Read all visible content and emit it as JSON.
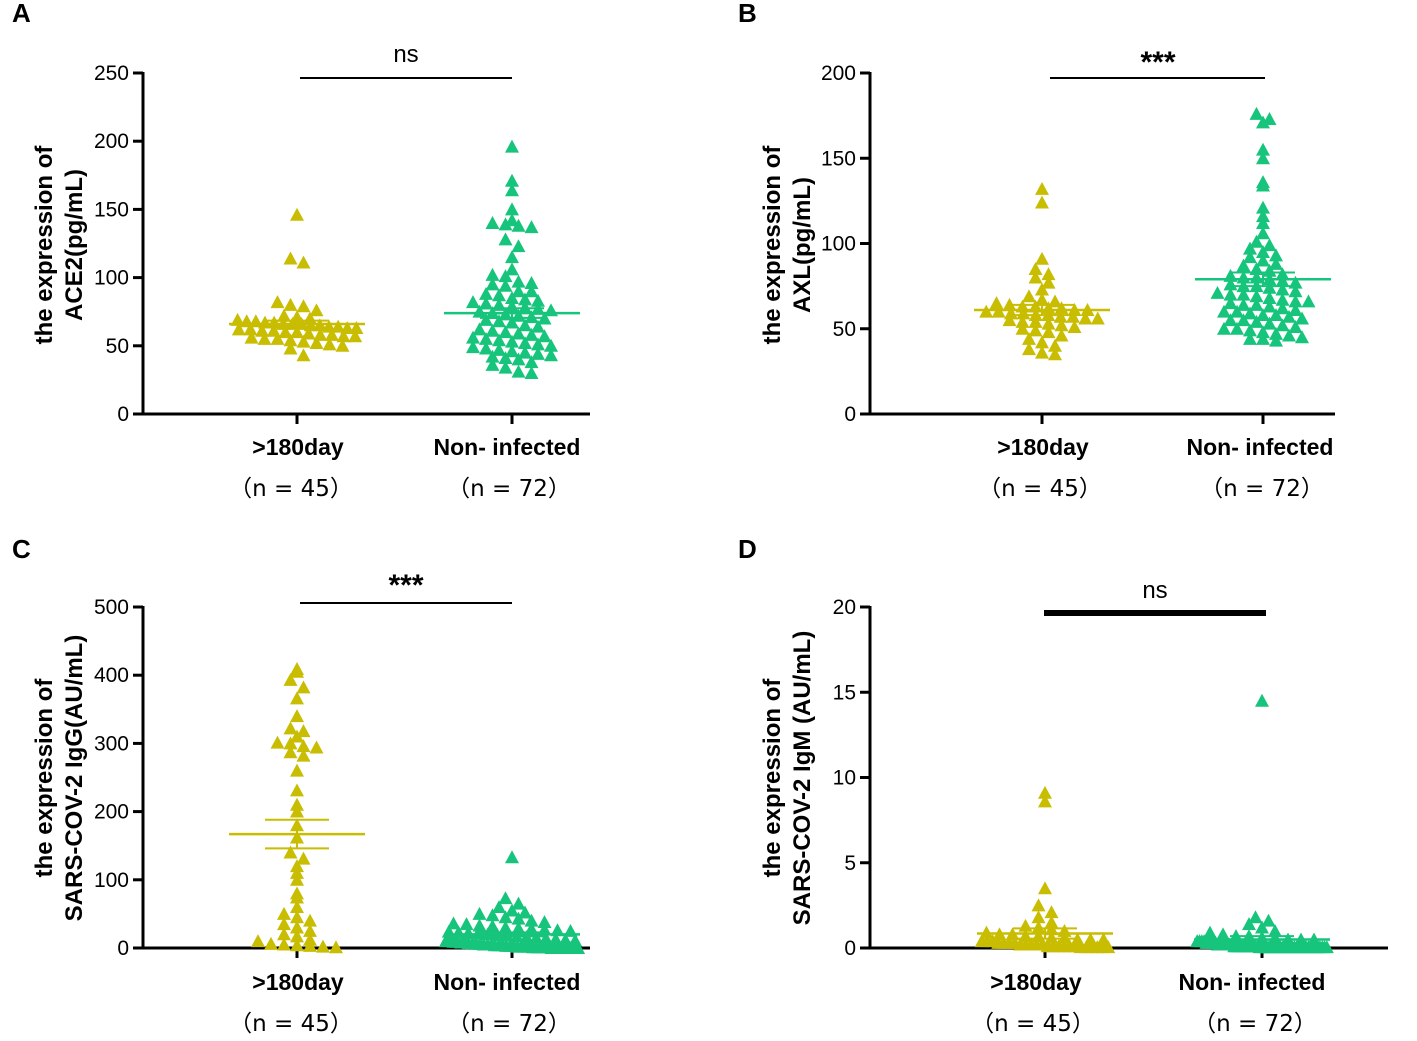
{
  "colors": {
    "group1": "#c8bd00",
    "group2": "#17c47c",
    "axis": "#000000"
  },
  "chart_data": [
    {
      "panel": "A",
      "type": "scatter",
      "ylabel": [
        "the expression of",
        "ACE2(pg/mL)"
      ],
      "ylim": [
        0,
        250
      ],
      "yticks": [
        "0",
        "50",
        "100",
        "150",
        "200",
        "250"
      ],
      "yticks_values": [
        0,
        50,
        100,
        150,
        200,
        250
      ],
      "categories": [
        ">180day",
        "Non- infected"
      ],
      "ns": [
        "（n = 45）",
        "（n = 72）"
      ],
      "significance": "ns",
      "groups": [
        {
          "name": ">180day",
          "mean": 66,
          "sem": 2.5,
          "values": [
            146,
            114,
            111,
            82,
            80,
            79,
            76,
            72,
            71,
            70,
            69,
            68,
            68,
            67,
            67,
            66,
            66,
            66,
            65,
            65,
            64,
            64,
            63,
            63,
            62,
            62,
            61,
            61,
            60,
            60,
            59,
            58,
            58,
            57,
            57,
            56,
            55,
            55,
            54,
            53,
            52,
            51,
            50,
            48,
            43
          ]
        },
        {
          "name": "Non- infected",
          "mean": 74,
          "sem": 3.5,
          "values": [
            196,
            171,
            164,
            150,
            142,
            140,
            139,
            138,
            137,
            128,
            123,
            115,
            106,
            102,
            101,
            97,
            96,
            95,
            94,
            90,
            90,
            88,
            87,
            85,
            84,
            83,
            82,
            81,
            80,
            79,
            78,
            77,
            76,
            75,
            74,
            73,
            72,
            71,
            70,
            69,
            68,
            67,
            65,
            64,
            62,
            61,
            60,
            59,
            58,
            57,
            56,
            55,
            54,
            53,
            52,
            51,
            50,
            49,
            48,
            47,
            46,
            45,
            44,
            43,
            42,
            41,
            40,
            38,
            36,
            34,
            31,
            30
          ]
        }
      ]
    },
    {
      "panel": "B",
      "type": "scatter",
      "ylabel": [
        "the expression of",
        "AXL(pg/mL)"
      ],
      "ylim": [
        0,
        200
      ],
      "yticks": [
        "0",
        "50",
        "100",
        "150",
        "200"
      ],
      "yticks_values": [
        0,
        50,
        100,
        150,
        200
      ],
      "categories": [
        ">180day",
        "Non- infected"
      ],
      "ns": [
        "（n = 45）",
        "（n = 72）"
      ],
      "significance": "***",
      "groups": [
        {
          "name": ">180day",
          "mean": 61,
          "sem": 3,
          "values": [
            132,
            124,
            91,
            85,
            82,
            80,
            77,
            73,
            69,
            67,
            66,
            65,
            64,
            63,
            63,
            62,
            62,
            61,
            61,
            60,
            60,
            59,
            59,
            58,
            58,
            57,
            57,
            56,
            56,
            55,
            54,
            54,
            53,
            52,
            51,
            50,
            49,
            48,
            46,
            44,
            42,
            40,
            38,
            36,
            35
          ]
        },
        {
          "name": "Non- infected",
          "mean": 79,
          "sem": 4,
          "values": [
            176,
            173,
            171,
            155,
            150,
            136,
            134,
            121,
            116,
            112,
            106,
            101,
            99,
            97,
            95,
            93,
            92,
            90,
            88,
            87,
            85,
            84,
            82,
            81,
            80,
            79,
            78,
            77,
            76,
            75,
            74,
            73,
            72,
            71,
            70,
            69,
            68,
            67,
            66,
            65,
            64,
            63,
            62,
            61,
            60,
            60,
            59,
            58,
            57,
            56,
            55,
            55,
            54,
            53,
            52,
            51,
            50,
            50,
            49,
            48,
            47,
            46,
            45,
            44,
            44,
            43,
            58,
            64,
            66,
            70,
            75,
            80
          ]
        }
      ]
    },
    {
      "panel": "C",
      "type": "scatter",
      "ylabel": [
        "the expression of",
        "SARS-COV-2 IgG(AU/mL)"
      ],
      "ylim": [
        0,
        500
      ],
      "yticks": [
        "0",
        "100",
        "200",
        "300",
        "400",
        "500"
      ],
      "yticks_values": [
        0,
        100,
        200,
        300,
        400,
        500
      ],
      "categories": [
        ">180day",
        "Non- infected"
      ],
      "ns": [
        "（n = 45）",
        "（n = 72）"
      ],
      "significance": "***",
      "groups": [
        {
          "name": ">180day",
          "mean": 167,
          "sem": 21,
          "values": [
            409,
            405,
            393,
            382,
            366,
            340,
            322,
            318,
            310,
            301,
            300,
            296,
            294,
            287,
            282,
            260,
            231,
            210,
            200,
            180,
            162,
            140,
            131,
            120,
            110,
            100,
            80,
            74,
            60,
            50,
            45,
            40,
            35,
            30,
            25,
            20,
            17,
            12,
            10,
            6,
            5,
            4,
            3,
            2,
            1
          ]
        },
        {
          "name": "Non- infected",
          "mean": 20,
          "sem": 3,
          "values": [
            133,
            73,
            65,
            60,
            55,
            52,
            50,
            48,
            45,
            43,
            40,
            38,
            36,
            35,
            33,
            32,
            30,
            29,
            28,
            27,
            26,
            25,
            24,
            23,
            22,
            21,
            20,
            19,
            18,
            17,
            16,
            15,
            14,
            13,
            12,
            11,
            10,
            10,
            9,
            9,
            8,
            8,
            7,
            7,
            6,
            6,
            5,
            5,
            5,
            4,
            4,
            4,
            3,
            3,
            3,
            2,
            2,
            2,
            2,
            1,
            1,
            1,
            1,
            1,
            0,
            0,
            0,
            0,
            0,
            0,
            0,
            0
          ]
        }
      ]
    },
    {
      "panel": "D",
      "type": "scatter",
      "ylabel": [
        "the expression of",
        "SARS-COV-2 IgM (AU/mL)"
      ],
      "ylim": [
        0,
        20
      ],
      "yticks": [
        "0",
        "5",
        "10",
        "15",
        "20"
      ],
      "yticks_values": [
        0,
        5,
        10,
        15,
        20
      ],
      "categories": [
        ">180day",
        "Non- infected"
      ],
      "ns": [
        "（n = 45）",
        "（n = 72）"
      ],
      "significance": "ns",
      "groups": [
        {
          "name": ">180day",
          "mean": 0.85,
          "sem": 0.3,
          "values": [
            9.1,
            8.6,
            3.5,
            2.5,
            2.1,
            1.8,
            1.5,
            1.3,
            1.2,
            1.1,
            1.0,
            0.9,
            0.8,
            0.8,
            0.7,
            0.7,
            0.6,
            0.6,
            0.5,
            0.5,
            0.5,
            0.4,
            0.4,
            0.4,
            0.3,
            0.3,
            0.3,
            0.3,
            0.2,
            0.2,
            0.2,
            0.2,
            0.2,
            0.1,
            0.1,
            0.1,
            0.1,
            0.1,
            0.1,
            0.05,
            0.05,
            0.05,
            0.05,
            0.05,
            0.05
          ]
        },
        {
          "name": "Non- infected",
          "mean": 0.5,
          "sem": 0.2,
          "values": [
            14.5,
            1.8,
            1.6,
            1.4,
            1.2,
            1.0,
            0.9,
            0.8,
            0.7,
            0.7,
            0.6,
            0.6,
            0.5,
            0.5,
            0.5,
            0.4,
            0.4,
            0.4,
            0.4,
            0.3,
            0.3,
            0.3,
            0.3,
            0.3,
            0.2,
            0.2,
            0.2,
            0.2,
            0.2,
            0.2,
            0.2,
            0.1,
            0.1,
            0.1,
            0.1,
            0.1,
            0.1,
            0.1,
            0.1,
            0.1,
            0.1,
            0.1,
            0.05,
            0.05,
            0.05,
            0.05,
            0.05,
            0.05,
            0.05,
            0.05,
            0.05,
            0.05,
            0.05,
            0.05,
            0.05,
            0.05,
            0.05,
            0.05,
            0.05,
            0.05,
            0.05,
            0.05,
            0.05,
            0.05,
            0.05,
            0.05,
            0.05,
            0.05,
            0.05,
            0.05,
            0.05,
            0.05
          ]
        }
      ]
    }
  ]
}
